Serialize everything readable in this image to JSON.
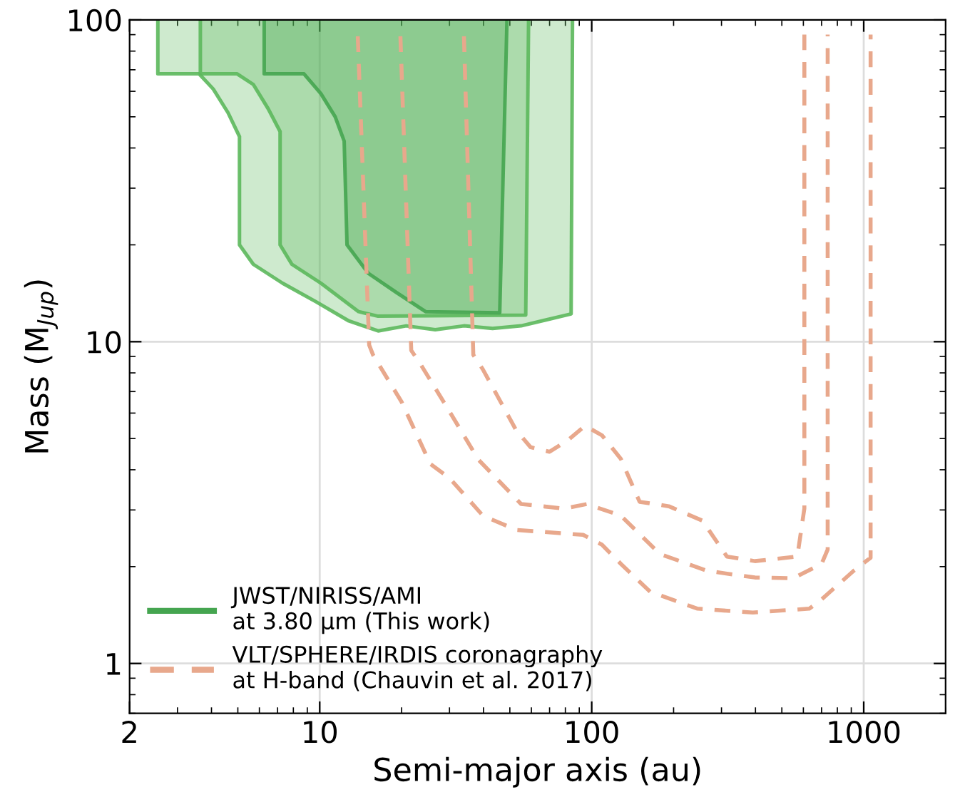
{
  "chart_data": {
    "type": "line",
    "xlabel": "Semi-major axis (au)",
    "ylabel": "Mass (M$_{Jup}$)",
    "log": "xy",
    "xlim": [
      2,
      2000
    ],
    "ylim": [
      0.7,
      100
    ],
    "xticks": [
      2,
      10,
      100,
      1000
    ],
    "yticks": [
      1,
      10,
      100
    ],
    "grid": true,
    "legend": "bottom left",
    "series": [
      {
        "type": "area",
        "color": "#5cb85c",
        "line_style": "solid",
        "x": [
          2.54,
          2.54,
          3.6,
          4.06,
          4.6,
          5.07,
          5.07,
          5.7,
          7.3,
          9.7,
          12.8,
          16.4,
          20.8,
          26.6,
          33.9,
          43.2,
          55,
          84,
          85
        ],
        "values": [
          100,
          68,
          68,
          61,
          51.5,
          43.4,
          20,
          17.4,
          15.2,
          13.3,
          11.6,
          10.8,
          11.2,
          10.9,
          11.2,
          11.0,
          11.2,
          12.2,
          100
        ]
      },
      {
        "type": "area",
        "color": "#5cb85c",
        "line_style": "solid",
        "x": [
          3.64,
          3.64,
          4.97,
          5.7,
          6.46,
          7.15,
          7.15,
          7.9,
          10.1,
          13.9,
          16.4,
          57.2,
          58.6
        ],
        "values": [
          100,
          68,
          68,
          63,
          53,
          45,
          20,
          17.4,
          15.2,
          12.4,
          12.0,
          12.1,
          100
        ]
      },
      {
        "type": "area",
        "name": "JWST/NIRISS/AMI\nat 3.80 μm (This work)",
        "color": "#45a550",
        "line_style": "solid",
        "x": [
          6.25,
          6.25,
          8.75,
          10.1,
          11.4,
          12.3,
          12.6,
          15.1,
          19.2,
          24.5,
          45.9,
          48.8
        ],
        "values": [
          100,
          68,
          68,
          59,
          50,
          42,
          20,
          16.3,
          14.2,
          12.4,
          12.3,
          100
        ]
      },
      {
        "name": "VLT/SPHERE/IRDIS coronagraphy\nat H-band (Chauvin et al. 2017)",
        "color": "#e8a88c",
        "line_style": "dashed",
        "x": [
          13.8,
          15.2,
          15.7,
          20,
          25.5,
          30,
          39.8,
          52.8,
          93,
          109,
          128,
          164,
          245,
          391,
          631,
          693,
          918,
          1036,
          1060,
          1060
        ],
        "values": [
          89,
          9.77,
          9.1,
          6.5,
          4.17,
          3.77,
          2.88,
          2.6,
          2.51,
          2.34,
          2.04,
          1.67,
          1.48,
          1.44,
          1.48,
          1.57,
          1.94,
          2.1,
          2.13,
          90
        ]
      },
      {
        "color": "#e8a88c",
        "line_style": "dashed",
        "x": [
          19.8,
          21.7,
          23.5,
          30,
          38.3,
          55,
          79,
          96,
          128,
          178,
          266,
          398,
          550,
          700,
          737,
          737
        ],
        "values": [
          89,
          9.4,
          8.5,
          6.07,
          4.3,
          3.13,
          3.03,
          3.13,
          2.88,
          2.19,
          1.94,
          1.85,
          1.84,
          2.04,
          2.26,
          90
        ]
      },
      {
        "color": "#e8a88c",
        "line_style": "dashed",
        "x": [
          33.9,
          36.7,
          39.8,
          52.8,
          59.6,
          70,
          82,
          94.5,
          109,
          128,
          150,
          192,
          255,
          314,
          398,
          570,
          605,
          605
        ],
        "values": [
          89,
          9.1,
          8.2,
          5.3,
          4.7,
          4.55,
          4.95,
          5.48,
          5.12,
          4.32,
          3.18,
          3.08,
          2.78,
          2.15,
          2.08,
          2.15,
          3.03,
          90
        ]
      }
    ]
  }
}
